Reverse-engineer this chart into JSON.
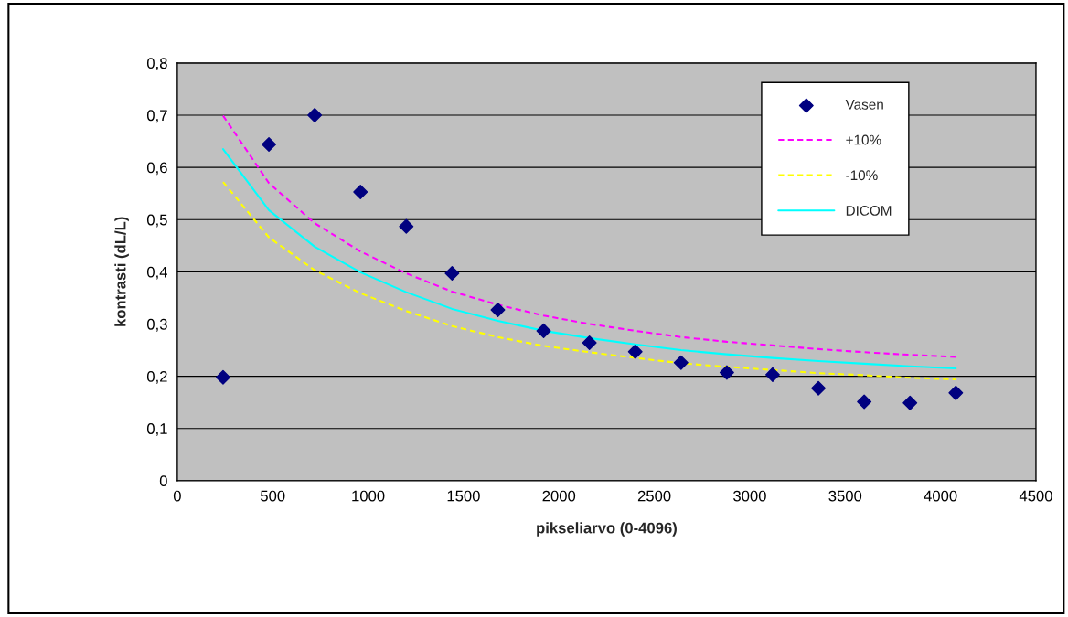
{
  "chart_data": {
    "type": "line",
    "xlabel": "pikseliarvo (0-4096)",
    "ylabel": "kontrasti (dL/L)",
    "x": [
      240,
      480,
      720,
      960,
      1200,
      1440,
      1680,
      1920,
      2160,
      2400,
      2640,
      2880,
      3120,
      3360,
      3600,
      3840,
      4080
    ],
    "series": [
      {
        "name": "Vasen",
        "type": "scatter",
        "marker": "diamond",
        "color": "#000080",
        "values": [
          0.198,
          0.644,
          0.7,
          0.553,
          0.487,
          0.397,
          0.327,
          0.287,
          0.264,
          0.247,
          0.226,
          0.207,
          0.203,
          0.177,
          0.151,
          0.149,
          0.168
        ]
      },
      {
        "name": "+10%",
        "line_style": "dashed",
        "color": "#ff00ff",
        "values": [
          0.699,
          0.57,
          0.493,
          0.439,
          0.397,
          0.362,
          0.337,
          0.316,
          0.3,
          0.287,
          0.275,
          0.266,
          0.259,
          0.252,
          0.246,
          0.241,
          0.237
        ]
      },
      {
        "name": "-10%",
        "line_style": "dashed",
        "color": "#ffff00",
        "values": [
          0.572,
          0.466,
          0.403,
          0.359,
          0.325,
          0.296,
          0.275,
          0.258,
          0.246,
          0.235,
          0.225,
          0.218,
          0.212,
          0.206,
          0.202,
          0.197,
          0.194
        ]
      },
      {
        "name": "DICOM",
        "line_style": "solid",
        "color": "#00ffff",
        "values": [
          0.635,
          0.518,
          0.448,
          0.399,
          0.361,
          0.329,
          0.306,
          0.287,
          0.273,
          0.261,
          0.25,
          0.242,
          0.235,
          0.229,
          0.224,
          0.219,
          0.215
        ]
      }
    ],
    "xlim": [
      0,
      4500
    ],
    "xticks": [
      0,
      500,
      1000,
      1500,
      2000,
      2500,
      3000,
      3500,
      4000,
      4500
    ],
    "ylim": [
      0,
      0.8
    ],
    "yticks": [
      {
        "value": 0,
        "label": "0"
      },
      {
        "value": 0.1,
        "label": "0,1"
      },
      {
        "value": 0.2,
        "label": "0,2"
      },
      {
        "value": 0.3,
        "label": "0,3"
      },
      {
        "value": 0.4,
        "label": "0,4"
      },
      {
        "value": 0.5,
        "label": "0,5"
      },
      {
        "value": 0.6,
        "label": "0,6"
      },
      {
        "value": 0.7,
        "label": "0,7"
      },
      {
        "value": 0.8,
        "label": "0,8"
      }
    ],
    "grid": "y",
    "legend": "top right"
  }
}
